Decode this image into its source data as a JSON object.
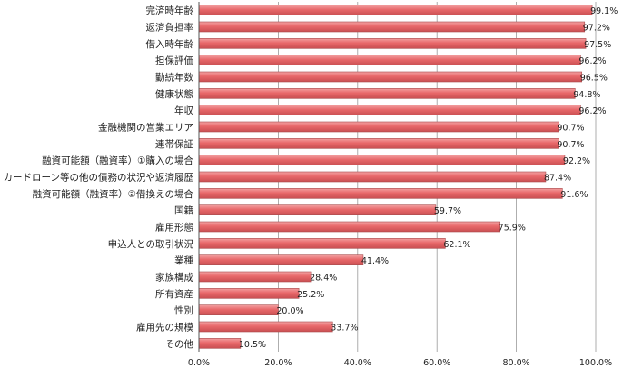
{
  "chart_data": {
    "type": "bar",
    "orientation": "horizontal",
    "categories": [
      "完済時年齢",
      "返済負担率",
      "借入時年齢",
      "担保評価",
      "勤続年数",
      "健康状態",
      "年収",
      "金融機関の営業エリア",
      "連帯保証",
      "融資可能額（融資率）①購入の場合",
      "カードローン等の他の債務の状況や返済履歴",
      "融資可能額（融資率）②借換えの場合",
      "国籍",
      "雇用形態",
      "申込人との取引状況",
      "業種",
      "家族構成",
      "所有資産",
      "性別",
      "雇用先の規模",
      "その他"
    ],
    "values": [
      99.1,
      97.2,
      97.5,
      96.2,
      96.5,
      94.8,
      96.2,
      90.7,
      90.7,
      92.2,
      87.4,
      91.6,
      59.7,
      75.9,
      62.1,
      41.4,
      28.4,
      25.2,
      20.0,
      33.7,
      10.5
    ],
    "value_labels": [
      "99.1%",
      "97.2%",
      "97.5%",
      "96.2%",
      "96.5%",
      "94.8%",
      "96.2%",
      "90.7%",
      "90.7%",
      "92.2%",
      "87.4%",
      "91.6%",
      "59.7%",
      "75.9%",
      "62.1%",
      "41.4%",
      "28.4%",
      "25.2%",
      "20.0%",
      "33.7%",
      "10.5%"
    ],
    "xlim": [
      0,
      100
    ],
    "xticks": [
      0,
      20,
      40,
      60,
      80,
      100
    ],
    "xtick_labels": [
      "0.0%",
      "20.0%",
      "40.0%",
      "60.0%",
      "80.0%",
      "100.0%"
    ],
    "grid": "vertical",
    "bar_color": "#e8686a",
    "bar_edge_color": "#a84a4c"
  }
}
